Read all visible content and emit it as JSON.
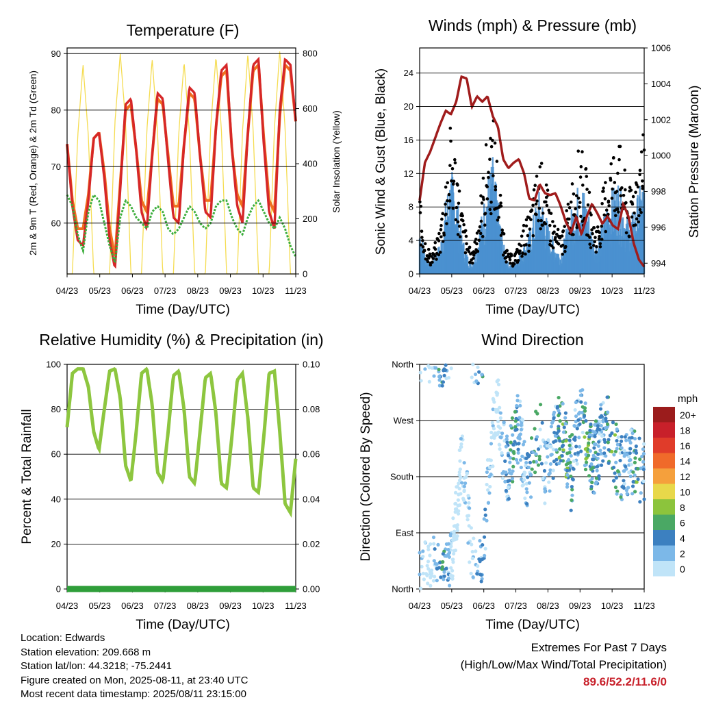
{
  "colors": {
    "temp_2m": "#d62728",
    "temp_9m": "#f07020",
    "dewpoint": "#3cae3c",
    "solar": "#f5dc50",
    "wind_sonic": "#4a90d0",
    "gust": "#000000",
    "pressure": "#a01c1c",
    "humidity": "#8dc63f",
    "precip": "#2f9e3a",
    "extremes": "#c8202a"
  },
  "chart_data": [
    {
      "id": "temperature",
      "type": "line",
      "title": "Temperature (F)",
      "xlabel": "Time (Day/UTC)",
      "ylabel": "2m & 9m T (Red, Orange) & 2m Td (Green)",
      "y2label": "Solar Insolation (Yellow)",
      "xticks": [
        "04/23",
        "05/23",
        "06/23",
        "07/23",
        "08/23",
        "09/23",
        "10/23",
        "11/23"
      ],
      "ylim": [
        51,
        91
      ],
      "yticks": [
        60,
        70,
        80,
        90
      ],
      "y2lim": [
        0,
        820
      ],
      "y2ticks": [
        0,
        200,
        400,
        600,
        800
      ],
      "grid": true,
      "series": [
        {
          "key": "t2m",
          "values": [
            74,
            63,
            57,
            56,
            64,
            75,
            76,
            68,
            57,
            52,
            66,
            81,
            82,
            73,
            62,
            59,
            72,
            83,
            82,
            71,
            61,
            60,
            74,
            84,
            83,
            72,
            62,
            61,
            77,
            87,
            88,
            73,
            63,
            60,
            76,
            88,
            89,
            74,
            62,
            59,
            80,
            89,
            88,
            78
          ]
        },
        {
          "key": "t9m",
          "values": [
            74,
            64,
            59,
            59,
            65,
            75,
            76,
            69,
            59,
            54,
            67,
            80,
            81,
            73,
            64,
            62,
            72,
            82,
            81,
            72,
            63,
            63,
            74,
            83,
            82,
            72,
            64,
            64,
            77,
            86,
            87,
            73,
            65,
            63,
            76,
            87,
            88,
            75,
            64,
            62,
            79,
            88,
            87,
            78
          ]
        },
        {
          "key": "td2m",
          "values": [
            65,
            63,
            58,
            55,
            62,
            65,
            64,
            60,
            56,
            53,
            61,
            64,
            63,
            61,
            60,
            59,
            62,
            63,
            62,
            59,
            58,
            59,
            61,
            63,
            62,
            60,
            59,
            60,
            63,
            64,
            64,
            61,
            59,
            58,
            61,
            63,
            64,
            62,
            60,
            59,
            61,
            59,
            56,
            54
          ]
        },
        {
          "key": "solar",
          "values": [
            0,
            0,
            500,
            760,
            500,
            0,
            0,
            0,
            0,
            550,
            800,
            550,
            0,
            0,
            0,
            520,
            780,
            520,
            0,
            0,
            0,
            510,
            770,
            510,
            0,
            0,
            0,
            530,
            790,
            530,
            0,
            0,
            0,
            520,
            800,
            520,
            0,
            0,
            0,
            530,
            810,
            530,
            0,
            0
          ]
        }
      ]
    },
    {
      "id": "winds",
      "type": "scatter",
      "title": "Winds (mph) & Pressure (mb)",
      "xlabel": "Time (Day/UTC)",
      "ylabel": "Sonic Wind & Gust (Blue, Black)",
      "y2label": "Station Pressure (Maroon)",
      "xticks": [
        "04/23",
        "05/23",
        "06/23",
        "07/23",
        "08/23",
        "09/23",
        "10/23",
        "11/23"
      ],
      "ylim": [
        0,
        27
      ],
      "yticks": [
        0,
        4,
        8,
        12,
        16,
        20,
        24
      ],
      "y2lim": [
        993.4,
        1006.0
      ],
      "y2ticks": [
        994,
        996,
        998,
        1000,
        1002,
        1004,
        1006
      ],
      "grid": true,
      "series": [
        {
          "key": "wind",
          "values": [
            5,
            2,
            1,
            2,
            3,
            7,
            10,
            8,
            4,
            2,
            1,
            3,
            6,
            9,
            11,
            7,
            3,
            1,
            1,
            2,
            3,
            4,
            6,
            8,
            6,
            4,
            3,
            2,
            4,
            6,
            8,
            9,
            7,
            4,
            3,
            5,
            7,
            8,
            9,
            7,
            5,
            6,
            8,
            9
          ]
        },
        {
          "key": "gust",
          "values": [
            8,
            4,
            2,
            3,
            5,
            10,
            15,
            12,
            7,
            4,
            2,
            5,
            9,
            14,
            16,
            11,
            5,
            2,
            2,
            3,
            5,
            6,
            9,
            12,
            10,
            7,
            5,
            4,
            6,
            9,
            12,
            13,
            10,
            6,
            5,
            8,
            11,
            13,
            14,
            11,
            8,
            10,
            13,
            14
          ]
        },
        {
          "key": "pressure",
          "values": [
            997.5,
            999.6,
            1000.2,
            1001.0,
            1001.8,
            1002.5,
            1002.3,
            1003.0,
            1004.4,
            1004.3,
            1002.7,
            1003.3,
            1003.0,
            1003.3,
            1002.2,
            1001.6,
            999.8,
            999.3,
            999.6,
            999.8,
            999.0,
            997.6,
            997.5,
            998.4,
            997.9,
            997.8,
            997.9,
            997.2,
            996.3,
            995.7,
            996.6,
            995.6,
            996.6,
            997.3,
            996.8,
            996.2,
            996.6,
            996.1,
            995.9,
            997.3,
            996.6,
            995.1,
            994.2,
            993.8
          ]
        }
      ]
    },
    {
      "id": "humidity",
      "type": "line",
      "title": "Relative Humidity (%) & Precipitation (in)",
      "xlabel": "Time (Day/UTC)",
      "ylabel": "Percent & Total Rainfall",
      "xticks": [
        "04/23",
        "05/23",
        "06/23",
        "07/23",
        "08/23",
        "09/23",
        "10/23",
        "11/23"
      ],
      "ylim": [
        0,
        100
      ],
      "yticks": [
        0,
        20,
        40,
        60,
        80,
        100
      ],
      "y2lim": [
        0,
        0.1
      ],
      "y2ticks": [
        "0.00",
        "0.02",
        "0.04",
        "0.06",
        "0.08",
        "0.10"
      ],
      "grid": true,
      "series": [
        {
          "key": "rh",
          "values": [
            72,
            96,
            98,
            98,
            90,
            70,
            62,
            80,
            97,
            98,
            85,
            55,
            48,
            70,
            96,
            98,
            82,
            52,
            48,
            70,
            95,
            97,
            80,
            50,
            47,
            70,
            94,
            96,
            78,
            47,
            45,
            68,
            93,
            96,
            76,
            45,
            43,
            68,
            96,
            97,
            70,
            38,
            34,
            58
          ]
        },
        {
          "key": "precip",
          "values": [
            0,
            0,
            0,
            0,
            0,
            0,
            0,
            0,
            0,
            0,
            0,
            0,
            0,
            0,
            0,
            0,
            0,
            0,
            0,
            0,
            0,
            0,
            0,
            0,
            0,
            0,
            0,
            0,
            0,
            0,
            0,
            0,
            0,
            0,
            0,
            0,
            0,
            0,
            0,
            0,
            0,
            0,
            0,
            0
          ]
        }
      ]
    },
    {
      "id": "direction",
      "type": "scatter",
      "title": "Wind Direction",
      "xlabel": "Time (Day/UTC)",
      "ylabel": "Direction (Colored By Speed)",
      "xticks": [
        "04/23",
        "05/23",
        "06/23",
        "07/23",
        "08/23",
        "09/23",
        "10/23",
        "11/23"
      ],
      "ylim": [
        0,
        360
      ],
      "ytick_labels": [
        "North",
        "East",
        "South",
        "West",
        "North"
      ],
      "ytick_values": [
        0,
        90,
        180,
        270,
        360
      ],
      "grid": true,
      "colorbar": {
        "title": "mph",
        "labels": [
          "20+",
          "18",
          "16",
          "14",
          "12",
          "10",
          "8",
          "6",
          "4",
          "2",
          "0"
        ],
        "colors": [
          "#9b1c1c",
          "#c8202a",
          "#e03c2a",
          "#f06a2a",
          "#f5a03c",
          "#e8d84a",
          "#8cc43c",
          "#4aa864",
          "#3c80c0",
          "#7cb8e8",
          "#c0e4f8"
        ]
      },
      "series": [
        {
          "key": "direction",
          "values": [
            20,
            30,
            25,
            35,
            15,
            20,
            40,
            120,
            200,
            150,
            30,
            20,
            25,
            160,
            250,
            300,
            220,
            180,
            240,
            260,
            200,
            170,
            230,
            250,
            190,
            210,
            240,
            260,
            230,
            180,
            250,
            270,
            240,
            200,
            220,
            250,
            260,
            230,
            200,
            190,
            210,
            200,
            190,
            180
          ]
        },
        {
          "key": "speed",
          "values": [
            3,
            2,
            1,
            4,
            7,
            5,
            2,
            1,
            2,
            3,
            1,
            4,
            6,
            3,
            2,
            1,
            3,
            5,
            6,
            4,
            3,
            5,
            7,
            6,
            4,
            3,
            5,
            7,
            8,
            6,
            4,
            5,
            8,
            7,
            5,
            4,
            6,
            8,
            6,
            5,
            4,
            6,
            7,
            5
          ]
        }
      ]
    }
  ],
  "info": {
    "location": "Location: Edwards",
    "elevation": "Station elevation: 209.668 m",
    "latlon": "Station lat/lon: 44.3218; -75.2441",
    "created": "Figure created on Mon, 2025-08-11, at 23:40 UTC",
    "recent": "Most recent data timestamp: 2025/08/11 23:15:00"
  },
  "extremes": {
    "title": "Extremes For Past 7 Days",
    "subtitle": "(High/Low/Max Wind/Total Precipitation)",
    "values": "89.6/52.2/11.6/0"
  }
}
